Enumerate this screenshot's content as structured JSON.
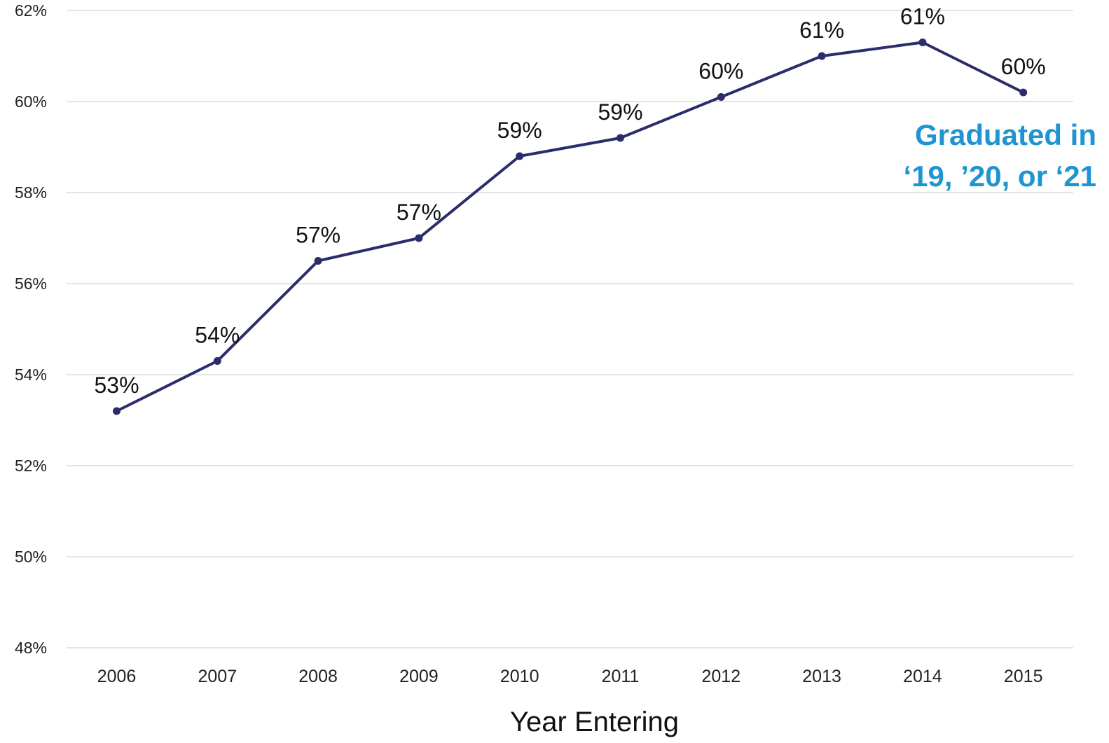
{
  "chart_data": {
    "type": "line",
    "title": "",
    "xlabel": "Year Entering",
    "ylabel": "",
    "ylim": [
      48,
      62
    ],
    "y_ticks": [
      48,
      50,
      52,
      54,
      56,
      58,
      60,
      62
    ],
    "y_tick_labels": [
      "48%",
      "50%",
      "52%",
      "54%",
      "56%",
      "58%",
      "60%",
      "62%"
    ],
    "categories": [
      "2006",
      "2007",
      "2008",
      "2009",
      "2010",
      "2011",
      "2012",
      "2013",
      "2014",
      "2015"
    ],
    "series": [
      {
        "color": "#2b2d6b",
        "values": [
          53.2,
          54.3,
          56.5,
          57.0,
          58.8,
          59.2,
          60.1,
          61.0,
          61.3,
          60.2
        ],
        "data_labels": [
          "53%",
          "54%",
          "57%",
          "57%",
          "59%",
          "59%",
          "60%",
          "61%",
          "61%",
          "60%"
        ]
      }
    ],
    "grid": true,
    "legend": "none",
    "annotation": {
      "lines": [
        "Graduated in",
        "‘19, ’20, or ‘21"
      ],
      "color": "#1e95d0"
    }
  }
}
